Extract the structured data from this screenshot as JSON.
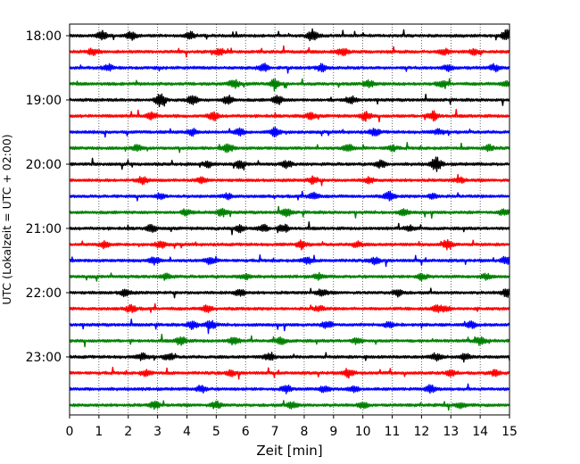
{
  "chart_data": {
    "type": "line",
    "title": "",
    "xlabel": "Zeit  [min]",
    "ylabel": "UTC (Lokalzeit = UTC + 02:00)",
    "xlim": [
      0,
      15
    ],
    "x_ticks": [
      0,
      1,
      2,
      3,
      4,
      5,
      6,
      7,
      8,
      9,
      10,
      11,
      12,
      13,
      14,
      15
    ],
    "y_tick_labels": [
      "18:00",
      "19:00",
      "20:00",
      "21:00",
      "22:00",
      "23:00"
    ],
    "x_grid": true,
    "x_grid_style": "dotted",
    "trace_interval_min": 15,
    "trace_start": "18:00",
    "trace_end": "23:45",
    "trace_colors": [
      "#000000",
      "#ff0000",
      "#0000ff",
      "#008000"
    ],
    "series": [
      {
        "values": [
          [
            2.1,
            0.5
          ],
          [
            8.3,
            0.9
          ],
          [
            14.9,
            0.8
          ],
          [
            1.1,
            0.6
          ],
          [
            4.1,
            0.5
          ]
        ]
      },
      {
        "values": [
          [
            0.8,
            0.5
          ],
          [
            5.1,
            0.4
          ],
          [
            9.3,
            0.5
          ],
          [
            12.8,
            0.4
          ],
          [
            13.8,
            0.4
          ]
        ]
      },
      {
        "values": [
          [
            1.3,
            0.5
          ],
          [
            6.6,
            0.6
          ],
          [
            8.6,
            0.5
          ],
          [
            12.9,
            0.4
          ],
          [
            14.5,
            0.5
          ]
        ]
      },
      {
        "values": [
          [
            5.6,
            0.6
          ],
          [
            7.0,
            0.6
          ],
          [
            10.2,
            0.5
          ],
          [
            12.7,
            0.4
          ],
          [
            14.9,
            0.4
          ]
        ]
      },
      {
        "values": [
          [
            3.1,
            1.0
          ],
          [
            4.2,
            0.6
          ],
          [
            5.4,
            0.6
          ],
          [
            7.1,
            0.6
          ],
          [
            9.6,
            0.5
          ]
        ]
      },
      {
        "values": [
          [
            2.8,
            0.5
          ],
          [
            4.9,
            0.6
          ],
          [
            8.2,
            0.5
          ],
          [
            10.1,
            0.6
          ],
          [
            12.4,
            0.7
          ]
        ]
      },
      {
        "values": [
          [
            5.8,
            0.5
          ],
          [
            7.0,
            0.7
          ],
          [
            4.2,
            0.5
          ],
          [
            10.4,
            0.5
          ],
          [
            12.6,
            0.4
          ]
        ]
      },
      {
        "values": [
          [
            5.4,
            0.6
          ],
          [
            9.5,
            0.5
          ],
          [
            2.3,
            0.4
          ],
          [
            11.0,
            0.4
          ],
          [
            14.3,
            0.4
          ]
        ]
      },
      {
        "values": [
          [
            4.7,
            0.4
          ],
          [
            7.4,
            0.5
          ],
          [
            10.6,
            0.5
          ],
          [
            12.5,
            1.0
          ],
          [
            5.8,
            0.5
          ]
        ]
      },
      {
        "values": [
          [
            2.5,
            0.5
          ],
          [
            4.5,
            0.4
          ],
          [
            8.3,
            0.5
          ],
          [
            10.2,
            0.4
          ],
          [
            13.3,
            0.4
          ]
        ]
      },
      {
        "values": [
          [
            3.1,
            0.4
          ],
          [
            5.4,
            0.4
          ],
          [
            8.3,
            0.5
          ],
          [
            10.9,
            0.6
          ],
          [
            12.4,
            0.4
          ]
        ]
      },
      {
        "values": [
          [
            5.2,
            0.6
          ],
          [
            4.0,
            0.4
          ],
          [
            7.4,
            0.5
          ],
          [
            11.4,
            0.4
          ],
          [
            14.8,
            0.4
          ]
        ]
      },
      {
        "values": [
          [
            2.8,
            0.5
          ],
          [
            5.8,
            0.5
          ],
          [
            6.6,
            0.5
          ],
          [
            7.3,
            0.6
          ],
          [
            11.6,
            0.4
          ]
        ]
      },
      {
        "values": [
          [
            1.2,
            0.5
          ],
          [
            3.1,
            0.5
          ],
          [
            7.9,
            0.5
          ],
          [
            12.9,
            0.7
          ],
          [
            9.8,
            0.4
          ]
        ]
      },
      {
        "values": [
          [
            2.9,
            0.5
          ],
          [
            4.8,
            0.5
          ],
          [
            8.1,
            0.5
          ],
          [
            10.4,
            0.5
          ],
          [
            14.9,
            0.6
          ]
        ]
      },
      {
        "values": [
          [
            3.3,
            0.4
          ],
          [
            6.0,
            0.4
          ],
          [
            8.5,
            0.4
          ],
          [
            12.0,
            0.5
          ],
          [
            14.2,
            0.4
          ]
        ]
      },
      {
        "values": [
          [
            1.9,
            0.5
          ],
          [
            5.8,
            0.5
          ],
          [
            8.6,
            0.5
          ],
          [
            11.2,
            0.5
          ],
          [
            14.9,
            0.6
          ]
        ]
      },
      {
        "values": [
          [
            2.1,
            0.5
          ],
          [
            4.7,
            0.5
          ],
          [
            8.5,
            0.4
          ],
          [
            12.5,
            0.4
          ],
          [
            12.8,
            0.4
          ]
        ]
      },
      {
        "values": [
          [
            4.2,
            0.6
          ],
          [
            4.8,
            0.7
          ],
          [
            8.8,
            0.5
          ],
          [
            10.9,
            0.4
          ],
          [
            13.7,
            0.4
          ]
        ]
      },
      {
        "values": [
          [
            3.8,
            0.6
          ],
          [
            5.6,
            0.5
          ],
          [
            7.2,
            0.5
          ],
          [
            9.8,
            0.4
          ],
          [
            14.0,
            0.5
          ]
        ]
      },
      {
        "values": [
          [
            2.5,
            0.5
          ],
          [
            3.4,
            0.5
          ],
          [
            6.8,
            0.5
          ],
          [
            12.5,
            0.5
          ],
          [
            13.5,
            0.5
          ]
        ]
      },
      {
        "values": [
          [
            9.5,
            0.6
          ],
          [
            2.6,
            0.4
          ],
          [
            5.5,
            0.4
          ],
          [
            13.0,
            0.4
          ],
          [
            14.5,
            0.4
          ]
        ]
      },
      {
        "values": [
          [
            4.5,
            0.5
          ],
          [
            7.4,
            0.5
          ],
          [
            8.7,
            0.5
          ],
          [
            12.3,
            0.5
          ],
          [
            9.7,
            0.4
          ]
        ]
      },
      {
        "values": [
          [
            2.9,
            0.5
          ],
          [
            5.0,
            0.5
          ],
          [
            7.6,
            0.5
          ],
          [
            10.0,
            0.4
          ],
          [
            13.3,
            0.4
          ]
        ]
      }
    ]
  }
}
